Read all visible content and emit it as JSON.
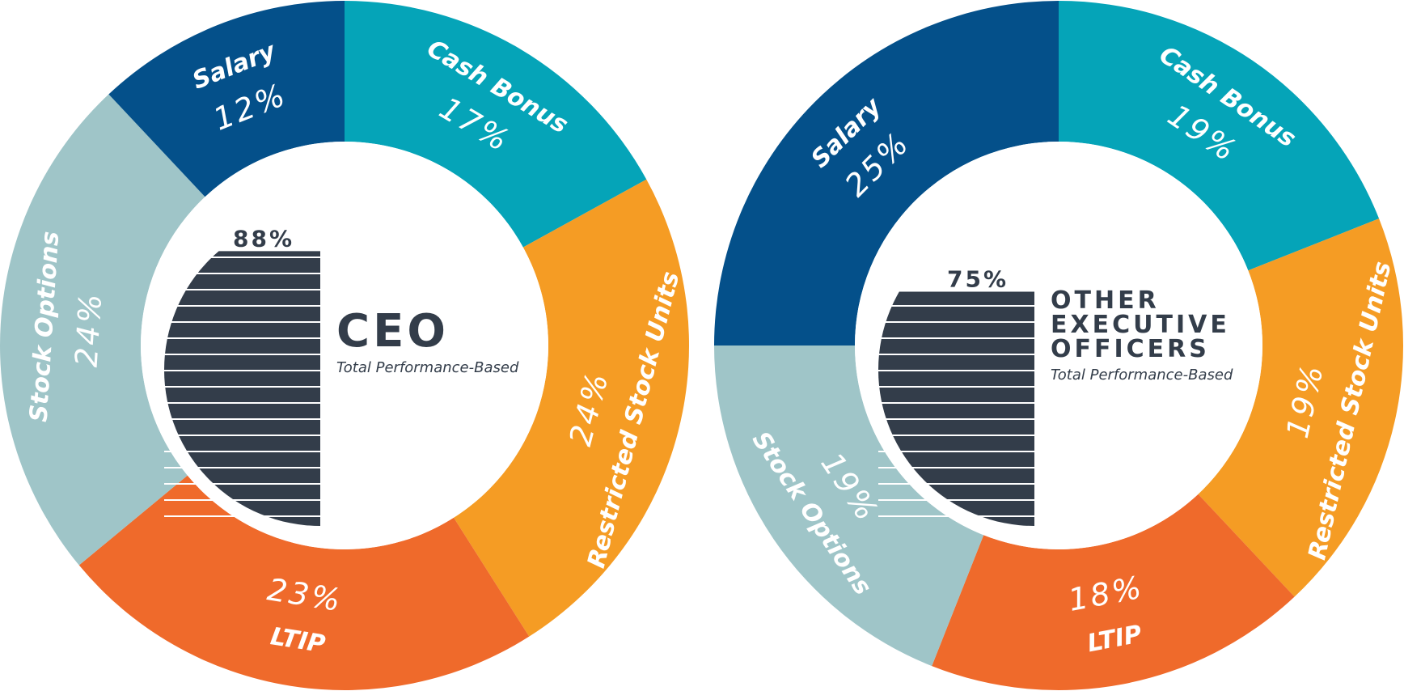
{
  "chart_data": [
    {
      "type": "pie",
      "donut": true,
      "title": "CEO",
      "subtitle": "Total Performance-Based",
      "performance_based": 88,
      "performance_based_label": "88%",
      "categories": [
        "Cash Bonus",
        "Restricted Stock Units",
        "LTIP",
        "Stock Options",
        "Salary"
      ],
      "values": [
        17,
        24,
        23,
        24,
        12
      ],
      "value_labels": [
        "17%",
        "24%",
        "23%",
        "24%",
        "12%"
      ],
      "colors": [
        "#05a4b8",
        "#f59c24",
        "#ef6a2b",
        "#9fc5c8",
        "#04508a"
      ]
    },
    {
      "type": "pie",
      "donut": true,
      "title": "OTHER EXECUTIVE OFFICERS",
      "subtitle": "Total Performance-Based",
      "performance_based": 75,
      "performance_based_label": "75%",
      "categories": [
        "Cash Bonus",
        "Restricted Stock Units",
        "LTIP",
        "Stock Options",
        "Salary"
      ],
      "values": [
        19,
        19,
        18,
        19,
        25
      ],
      "value_labels": [
        "19%",
        "19%",
        "18%",
        "19%",
        "25%"
      ],
      "colors": [
        "#05a4b8",
        "#f59c24",
        "#ef6a2b",
        "#9fc5c8",
        "#04508a"
      ]
    }
  ]
}
